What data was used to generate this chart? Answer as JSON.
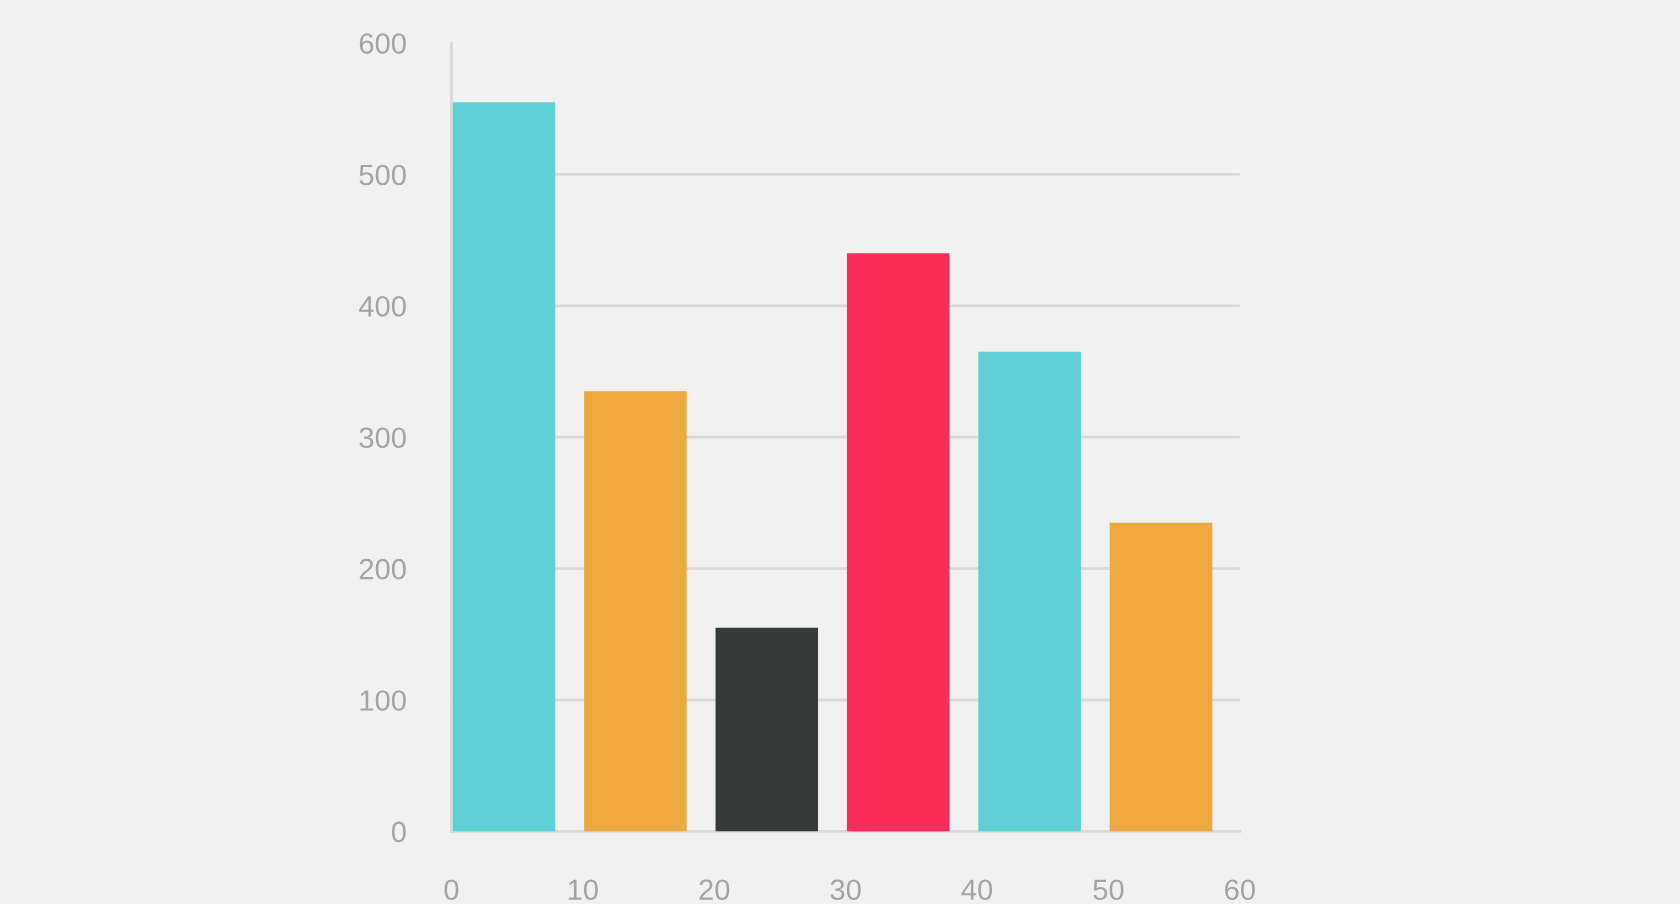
{
  "chart_data": {
    "type": "bar",
    "x": [
      4,
      14,
      24,
      34,
      44,
      54
    ],
    "values": [
      555,
      335,
      155,
      440,
      365,
      235
    ],
    "colors": [
      "#5ecfd4",
      "#eca83c",
      "#343b39",
      "#fb2c5a",
      "#5ecfd4",
      "#eca83c"
    ],
    "xlim": [
      0,
      60
    ],
    "xticks": [
      0,
      10,
      20,
      30,
      40,
      50,
      60
    ],
    "ylim": [
      0,
      600
    ],
    "yticks": [
      0,
      100,
      200,
      300,
      400,
      500,
      600
    ],
    "grid": "y",
    "legend": false
  }
}
